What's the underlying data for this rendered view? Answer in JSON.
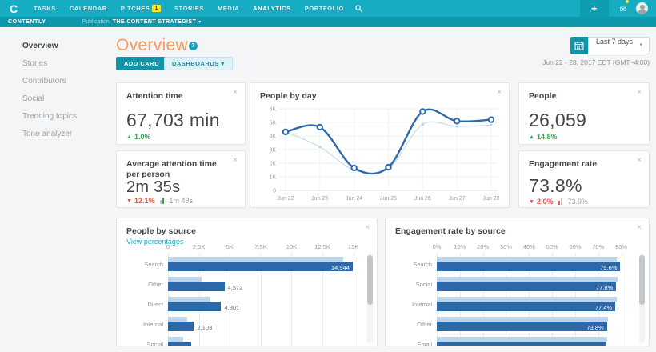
{
  "topnav": {
    "logo": "C",
    "items": [
      {
        "label": "TASKS"
      },
      {
        "label": "CALENDAR"
      },
      {
        "label": "PITCHES",
        "badge": "1"
      },
      {
        "label": "STORIES"
      },
      {
        "label": "MEDIA"
      },
      {
        "label": "ANALYTICS",
        "active": true
      },
      {
        "label": "PORTFOLIO"
      }
    ],
    "plus": "+",
    "mail_glyph": "✉"
  },
  "subnav": {
    "brand": "CONTENTLY",
    "publication_label": "Publication",
    "publication_name": "THE CONTENT STRATEGIST",
    "caret": "▾"
  },
  "sidebar": {
    "items": [
      {
        "label": "Overview",
        "active": true
      },
      {
        "label": "Stories"
      },
      {
        "label": "Contributors"
      },
      {
        "label": "Social"
      },
      {
        "label": "Trending topics"
      },
      {
        "label": "Tone analyzer"
      }
    ]
  },
  "header": {
    "title": "Overview",
    "help": "?",
    "add_card": "ADD CARD",
    "dashboards": "DASHBOARDS",
    "caret": "▾",
    "range": "Last 7 days",
    "date_note": "Jun 22 - 28, 2017 EDT (GMT -4:00)"
  },
  "glyphs": {
    "close": "×",
    "up": "▲",
    "down": "▼"
  },
  "cards": {
    "attention_time": {
      "title": "Attention time",
      "value": "67,703 min",
      "delta": "1.0%",
      "trend": "up"
    },
    "people": {
      "title": "People",
      "value": "26,059",
      "delta": "14.8%",
      "trend": "up"
    },
    "avg_attention": {
      "title": "Average attention time per person",
      "value": "2m 35s",
      "delta": "12.1%",
      "trend": "down",
      "benchmark": "1m 48s",
      "benchmark_color": "#2fad4d"
    },
    "engagement_rate": {
      "title": "Engagement rate",
      "value": "73.8%",
      "delta": "2.0%",
      "trend": "down",
      "benchmark": "73.9%",
      "benchmark_color": "#e2574c"
    },
    "people_by_day": {
      "title": "People by day"
    },
    "people_by_source": {
      "title": "People by source",
      "link": "View percentages"
    },
    "engagement_by_source": {
      "title": "Engagement rate by source"
    }
  },
  "chart_data": {
    "people_by_day": {
      "type": "line",
      "categories": [
        "Jun 22",
        "Jun 23",
        "Jun 24",
        "Jun 25",
        "Jun 26",
        "Jun 27",
        "Jun 28"
      ],
      "ylim": [
        0,
        6000
      ],
      "y_ticks": [
        {
          "v": 0,
          "label": "0"
        },
        {
          "v": 1000,
          "label": "1K"
        },
        {
          "v": 2000,
          "label": "2K"
        },
        {
          "v": 3000,
          "label": "3K"
        },
        {
          "v": 4000,
          "label": "4K"
        },
        {
          "v": 5000,
          "label": "5K"
        },
        {
          "v": 6000,
          "label": "6K"
        }
      ],
      "series": [
        {
          "name": "previous period",
          "values": [
            4300,
            3200,
            1500,
            1600,
            4850,
            4700,
            4800
          ]
        },
        {
          "name": "current period",
          "values": [
            4300,
            4650,
            1650,
            1700,
            5800,
            5100,
            5200
          ]
        }
      ],
      "grid": true,
      "legend": "none"
    },
    "people_by_source": {
      "type": "bar",
      "orientation": "horizontal",
      "xmax": 15600,
      "ticks": [
        {
          "v": 0,
          "label": "0"
        },
        {
          "v": 2500,
          "label": "2.5K"
        },
        {
          "v": 5000,
          "label": "5K"
        },
        {
          "v": 7500,
          "label": "7.5K"
        },
        {
          "v": 10000,
          "label": "10K"
        },
        {
          "v": 12500,
          "label": "12.5K"
        },
        {
          "v": 15000,
          "label": "15K"
        }
      ],
      "rows": [
        {
          "label": "Search",
          "current": 14944,
          "value_label": "14,944",
          "previous": 14200,
          "inside": true
        },
        {
          "label": "Other",
          "current": 4572,
          "value_label": "4,572",
          "previous": 2700,
          "inside": false
        },
        {
          "label": "Direct",
          "current": 4301,
          "value_label": "4,301",
          "previous": 3400,
          "inside": false
        },
        {
          "label": "Internal",
          "current": 2103,
          "value_label": "2,103",
          "previous": 1550,
          "inside": false
        },
        {
          "label": "Social",
          "current": 1860,
          "value_label": "1,860",
          "previous": 1250,
          "inside": false
        }
      ]
    },
    "engagement_by_source": {
      "type": "bar",
      "orientation": "horizontal",
      "xmax": 85,
      "ticks": [
        {
          "v": 0,
          "label": "0%"
        },
        {
          "v": 10,
          "label": "10%"
        },
        {
          "v": 20,
          "label": "20%"
        },
        {
          "v": 30,
          "label": "30%"
        },
        {
          "v": 40,
          "label": "40%"
        },
        {
          "v": 50,
          "label": "50%"
        },
        {
          "v": 60,
          "label": "60%"
        },
        {
          "v": 70,
          "label": "70%"
        },
        {
          "v": 80,
          "label": "80%"
        }
      ],
      "rows": [
        {
          "label": "Search",
          "current": 79.6,
          "value_label": "79.6%",
          "previous": 78.0,
          "inside": true
        },
        {
          "label": "Social",
          "current": 77.8,
          "value_label": "77.8%",
          "previous": 78.3,
          "inside": true
        },
        {
          "label": "Internal",
          "current": 77.4,
          "value_label": "77.4%",
          "previous": 77.9,
          "inside": true
        },
        {
          "label": "Other",
          "current": 73.8,
          "value_label": "73.8%",
          "previous": 74.3,
          "inside": true
        },
        {
          "label": "Email",
          "current": 73.5,
          "value_label": "73.5%",
          "previous": 73.9,
          "inside": true
        }
      ]
    }
  },
  "colors": {
    "topbar": "#16adc2",
    "subbar": "#0d98ac",
    "accent_teal": "#1194a8",
    "title_orange": "#f79b5b",
    "green": "#2fad4d",
    "red": "#e2574c",
    "bar_dark": "#2d68a8",
    "bar_light": "#bdd5eb"
  }
}
